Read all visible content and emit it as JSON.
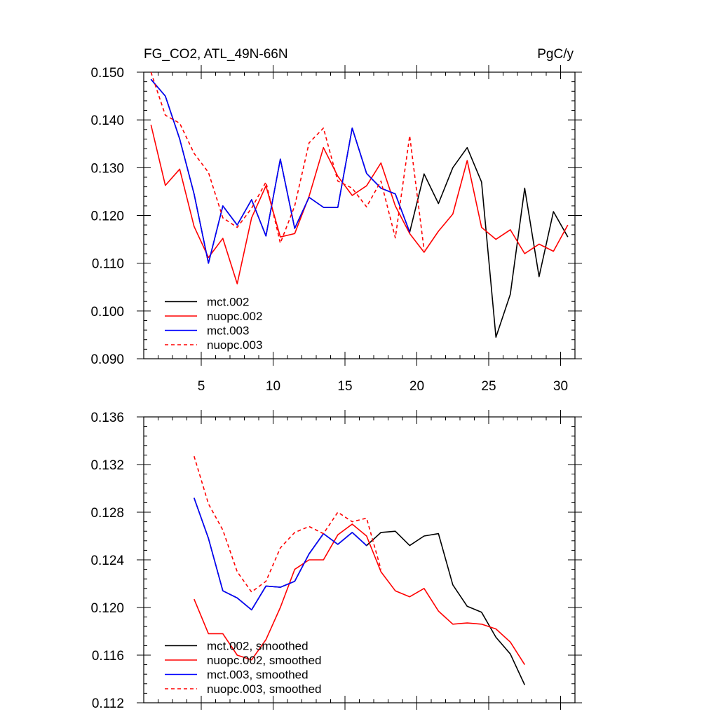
{
  "chart_data": [
    {
      "type": "line",
      "title": "FG_CO2, ATL_49N-66N",
      "units": "PgC/y",
      "xlabel": "",
      "ylabel": "",
      "xlim": [
        1,
        31
      ],
      "ylim": [
        0.09,
        0.15
      ],
      "xticks": [
        5,
        10,
        15,
        20,
        25,
        30
      ],
      "yticks": [
        0.09,
        0.1,
        0.11,
        0.12,
        0.13,
        0.14,
        0.15
      ],
      "ytick_labels": [
        "0.090",
        "0.100",
        "0.110",
        "0.120",
        "0.130",
        "0.140",
        "0.150"
      ],
      "legend_position": "bottom-left",
      "series": [
        {
          "name": "mct.002",
          "color": "#000000",
          "dash": "solid",
          "x": [
            1.5,
            2.5,
            3.5,
            4.5,
            5.5,
            6.5,
            7.5,
            8.5,
            9.5,
            10.5,
            11.5,
            12.5,
            13.5,
            14.5,
            15.5,
            16.5,
            17.5,
            18.5,
            19.5,
            20.5,
            21.5,
            22.5,
            23.5,
            24.5,
            25.5,
            26.5,
            27.5,
            28.5,
            29.5,
            30.5
          ],
          "values": [
            0.1485,
            0.145,
            0.136,
            0.1245,
            0.11,
            0.122,
            0.118,
            0.1233,
            0.1157,
            0.1318,
            0.1173,
            0.1238,
            0.1217,
            0.1217,
            0.1383,
            0.1288,
            0.1257,
            0.1245,
            0.1165,
            0.1287,
            0.1225,
            0.13,
            0.1342,
            0.127,
            0.0945,
            0.1035,
            0.1257,
            0.1072,
            0.1208,
            0.1155
          ]
        },
        {
          "name": "nuopc.002",
          "color": "#ff0000",
          "dash": "solid",
          "x": [
            1.5,
            2.5,
            3.5,
            4.5,
            5.5,
            6.5,
            7.5,
            8.5,
            9.5,
            10.5,
            11.5,
            12.5,
            13.5,
            14.5,
            15.5,
            16.5,
            17.5,
            18.5,
            19.5,
            20.5,
            21.5,
            22.5,
            23.5,
            24.5,
            25.5,
            26.5,
            27.5,
            28.5,
            29.5,
            30.5
          ],
          "values": [
            0.139,
            0.1263,
            0.1297,
            0.1177,
            0.1112,
            0.1152,
            0.1057,
            0.1195,
            0.1262,
            0.1155,
            0.1162,
            0.124,
            0.1342,
            0.1282,
            0.1242,
            0.1262,
            0.131,
            0.122,
            0.1162,
            0.1123,
            0.1167,
            0.1203,
            0.1315,
            0.1175,
            0.115,
            0.117,
            0.112,
            0.114,
            0.1125,
            0.118
          ]
        },
        {
          "name": "mct.003",
          "color": "#0000ff",
          "dash": "solid",
          "x": [
            1.5,
            2.5,
            3.5,
            4.5,
            5.5,
            6.5,
            7.5,
            8.5,
            9.5,
            10.5,
            11.5,
            12.5,
            13.5,
            14.5,
            15.5,
            16.5,
            17.5,
            18.5,
            19.5
          ],
          "values": [
            0.1485,
            0.145,
            0.136,
            0.1245,
            0.11,
            0.122,
            0.118,
            0.1233,
            0.1157,
            0.1318,
            0.1173,
            0.1238,
            0.1217,
            0.1217,
            0.1383,
            0.1288,
            0.1257,
            0.1245,
            0.1165
          ]
        },
        {
          "name": "nuopc.003",
          "color": "#ff0000",
          "dash": "dashed",
          "x": [
            1.5,
            2.5,
            3.5,
            4.5,
            5.5,
            6.5,
            7.5,
            8.5,
            9.5,
            10.5,
            11.5,
            12.5,
            13.5,
            14.5,
            15.5,
            16.5,
            17.5,
            18.5,
            19.5,
            20.5
          ],
          "values": [
            0.15,
            0.141,
            0.1393,
            0.133,
            0.129,
            0.1195,
            0.1175,
            0.1215,
            0.127,
            0.1142,
            0.122,
            0.1352,
            0.1383,
            0.1272,
            0.1257,
            0.1218,
            0.1272,
            0.1153,
            0.1367,
            0.1128
          ]
        }
      ]
    },
    {
      "type": "line",
      "title": "",
      "xlabel": "",
      "ylabel": "",
      "xlim": [
        1,
        31
      ],
      "ylim": [
        0.112,
        0.136
      ],
      "xticks": [
        5,
        10,
        15,
        20,
        25,
        30
      ],
      "yticks": [
        0.112,
        0.116,
        0.12,
        0.124,
        0.128,
        0.132,
        0.136
      ],
      "ytick_labels": [
        "0.112",
        "0.116",
        "0.120",
        "0.124",
        "0.128",
        "0.132",
        "0.136"
      ],
      "legend_position": "bottom-left",
      "series": [
        {
          "name": "mct.002, smoothed",
          "color": "#000000",
          "dash": "solid",
          "x": [
            4.5,
            5.5,
            6.5,
            7.5,
            8.5,
            9.5,
            10.5,
            11.5,
            12.5,
            13.5,
            14.5,
            15.5,
            16.5,
            17.5,
            18.5,
            19.5,
            20.5,
            21.5,
            22.5,
            23.5,
            24.5,
            25.5,
            26.5,
            27.5
          ],
          "values": [
            0.1292,
            0.1258,
            0.1214,
            0.1208,
            0.1198,
            0.1218,
            0.1217,
            0.1222,
            0.1245,
            0.1262,
            0.1253,
            0.1263,
            0.1252,
            0.1263,
            0.1264,
            0.1252,
            0.126,
            0.1262,
            0.1219,
            0.1201,
            0.1196,
            0.1175,
            0.1161,
            0.1135
          ]
        },
        {
          "name": "nuopc.002, smoothed",
          "color": "#ff0000",
          "dash": "solid",
          "x": [
            4.5,
            5.5,
            6.5,
            7.5,
            8.5,
            9.5,
            10.5,
            11.5,
            12.5,
            13.5,
            14.5,
            15.5,
            16.5,
            17.5,
            18.5,
            19.5,
            20.5,
            21.5,
            22.5,
            23.5,
            24.5,
            25.5,
            26.5,
            27.5
          ],
          "values": [
            0.1207,
            0.1178,
            0.1178,
            0.116,
            0.1156,
            0.1173,
            0.12,
            0.1232,
            0.124,
            0.124,
            0.1261,
            0.127,
            0.126,
            0.123,
            0.1214,
            0.1209,
            0.1216,
            0.1197,
            0.1186,
            0.1187,
            0.1186,
            0.1182,
            0.1171,
            0.1152
          ]
        },
        {
          "name": "mct.003, smoothed",
          "color": "#0000ff",
          "dash": "solid",
          "x": [
            4.5,
            5.5,
            6.5,
            7.5,
            8.5,
            9.5,
            10.5,
            11.5,
            12.5,
            13.5,
            14.5,
            15.5,
            16.5
          ],
          "values": [
            0.1292,
            0.1258,
            0.1214,
            0.1208,
            0.1198,
            0.1218,
            0.1217,
            0.1222,
            0.1245,
            0.1262,
            0.1253,
            0.1263,
            0.1252
          ]
        },
        {
          "name": "nuopc.003, smoothed",
          "color": "#ff0000",
          "dash": "dashed",
          "x": [
            4.5,
            5.5,
            6.5,
            7.5,
            8.5,
            9.5,
            10.5,
            11.5,
            12.5,
            13.5,
            14.5,
            15.5,
            16.5,
            17.5
          ],
          "values": [
            0.1327,
            0.1287,
            0.1265,
            0.123,
            0.1213,
            0.1222,
            0.125,
            0.1263,
            0.1268,
            0.1262,
            0.128,
            0.1272,
            0.1275,
            0.1232
          ]
        }
      ]
    }
  ]
}
